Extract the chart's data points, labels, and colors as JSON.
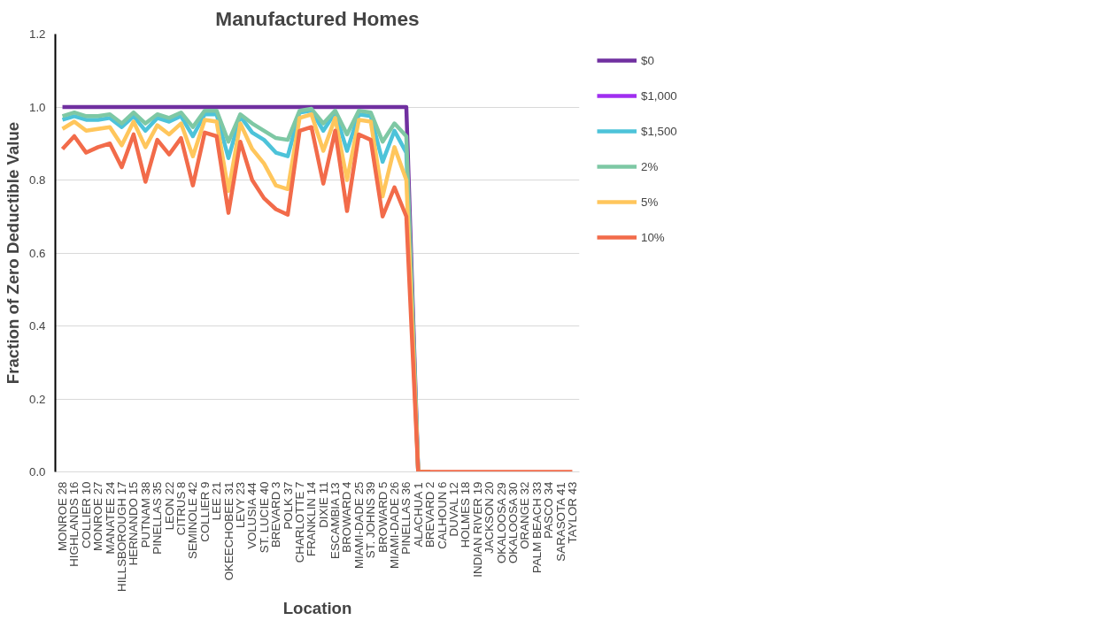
{
  "chart_data": {
    "type": "line",
    "title": "Manufactured Homes",
    "xlabel": "Location",
    "ylabel": "Fraction of Zero Deductible Value",
    "categories": [
      "MONROE 28",
      "HIGHLANDS 16",
      "COLLIER 10",
      "MONROE 27",
      "MANATEE 24",
      "HILLSBOROUGH 17",
      "HERNANDO 15",
      "PUTNAM 38",
      "PINELLAS 35",
      "LEON 22",
      "CITRUS 8",
      "SEMINOLE 42",
      "COLLIER 9",
      "LEE 21",
      "OKEECHOBEE 31",
      "LEVY 23",
      "VOLUSIA 44",
      "ST. LUCIE 40",
      "BREVARD 3",
      "POLK 37",
      "CHARLOTTE 7",
      "FRANKLIN 14",
      "DIXIE 11",
      "ESCAMBIA 13",
      "BROWARD 4",
      "MIAMI-DADE 25",
      "ST. JOHNS 39",
      "BROWARD 5",
      "MIAMI-DADE 26",
      "PINELLAS 36",
      "ALACHUA 1",
      "BREVARD 2",
      "CALHOUN 6",
      "DUVAL 12",
      "HOLMES 18",
      "INDIAN RIVER 19",
      "JACKSON 20",
      "OKALOOSA 29",
      "OKALOOSA 30",
      "ORANGE 32",
      "PALM BEACH 33",
      "PASCO 34",
      "SARASOTA 41",
      "TAYLOR 43"
    ],
    "series": [
      {
        "name": "$0",
        "color": "#7030a0",
        "values": [
          1.0,
          1.0,
          1.0,
          1.0,
          1.0,
          1.0,
          1.0,
          1.0,
          1.0,
          1.0,
          1.0,
          1.0,
          1.0,
          1.0,
          1.0,
          1.0,
          1.0,
          1.0,
          1.0,
          1.0,
          1.0,
          1.0,
          1.0,
          1.0,
          1.0,
          1.0,
          1.0,
          1.0,
          1.0,
          1.0,
          0,
          0,
          null,
          null,
          null,
          null,
          null,
          null,
          null,
          null,
          null,
          null,
          null,
          null
        ]
      },
      {
        "name": "$1,000",
        "color": "#a02ef0",
        "values": [
          null,
          null,
          null,
          null,
          null,
          null,
          null,
          null,
          null,
          null,
          null,
          null,
          null,
          null,
          null,
          null,
          null,
          null,
          null,
          null,
          null,
          null,
          null,
          null,
          null,
          null,
          null,
          null,
          null,
          null,
          null,
          null,
          null,
          null,
          null,
          null,
          null,
          null,
          null,
          null,
          null,
          null,
          null,
          null
        ]
      },
      {
        "name": "$1,500",
        "color": "#4dc3d9",
        "values": [
          0.965,
          0.975,
          0.965,
          0.965,
          0.97,
          0.945,
          0.975,
          0.935,
          0.97,
          0.96,
          0.975,
          0.92,
          0.98,
          0.98,
          0.86,
          0.975,
          0.93,
          0.91,
          0.875,
          0.865,
          0.985,
          0.99,
          0.935,
          0.985,
          0.88,
          0.98,
          0.975,
          0.85,
          0.935,
          0.875,
          0,
          0,
          null,
          null,
          null,
          null,
          null,
          null,
          null,
          null,
          null,
          null,
          null,
          null
        ]
      },
      {
        "name": "2%",
        "color": "#7ec8a4",
        "values": [
          0.975,
          0.985,
          0.975,
          0.975,
          0.98,
          0.955,
          0.985,
          0.955,
          0.98,
          0.97,
          0.985,
          0.945,
          0.99,
          0.99,
          0.905,
          0.98,
          0.955,
          0.935,
          0.915,
          0.91,
          0.99,
          0.995,
          0.955,
          0.99,
          0.925,
          0.99,
          0.985,
          0.905,
          0.955,
          0.92,
          0,
          0,
          null,
          null,
          null,
          null,
          null,
          null,
          null,
          null,
          null,
          null,
          null,
          null
        ]
      },
      {
        "name": "5%",
        "color": "#ffc65c",
        "values": [
          0.94,
          0.96,
          0.935,
          0.94,
          0.945,
          0.895,
          0.96,
          0.89,
          0.95,
          0.925,
          0.955,
          0.865,
          0.965,
          0.96,
          0.77,
          0.955,
          0.885,
          0.845,
          0.785,
          0.775,
          0.97,
          0.98,
          0.88,
          0.97,
          0.8,
          0.965,
          0.96,
          0.755,
          0.89,
          0.8,
          0,
          0,
          null,
          null,
          null,
          null,
          null,
          null,
          null,
          null,
          null,
          null,
          null,
          null
        ]
      },
      {
        "name": "10%",
        "color": "#f26b4a",
        "values": [
          0.885,
          0.92,
          0.875,
          0.89,
          0.9,
          0.835,
          0.925,
          0.795,
          0.91,
          0.87,
          0.915,
          0.785,
          0.93,
          0.92,
          0.71,
          0.905,
          0.8,
          0.75,
          0.72,
          0.705,
          0.935,
          0.945,
          0.79,
          0.935,
          0.715,
          0.925,
          0.91,
          0.7,
          0.78,
          0.7,
          0,
          0,
          0,
          0,
          0,
          0,
          0,
          0,
          0,
          0,
          0,
          0,
          0,
          0
        ]
      }
    ],
    "ylim": [
      0,
      1.2
    ],
    "yticks": [
      {
        "value": 0,
        "label": "0.0"
      },
      {
        "value": 0.2,
        "label": "0.2"
      },
      {
        "value": 0.4,
        "label": "0.4"
      },
      {
        "value": 0.6,
        "label": "0.6"
      },
      {
        "value": 0.8,
        "label": "0.8"
      },
      {
        "value": 1.0,
        "label": "1.0"
      },
      {
        "value": 1.2,
        "label": "1.2"
      }
    ],
    "grid": "y",
    "legend": "right",
    "marker": "none",
    "line_style": "solid"
  }
}
